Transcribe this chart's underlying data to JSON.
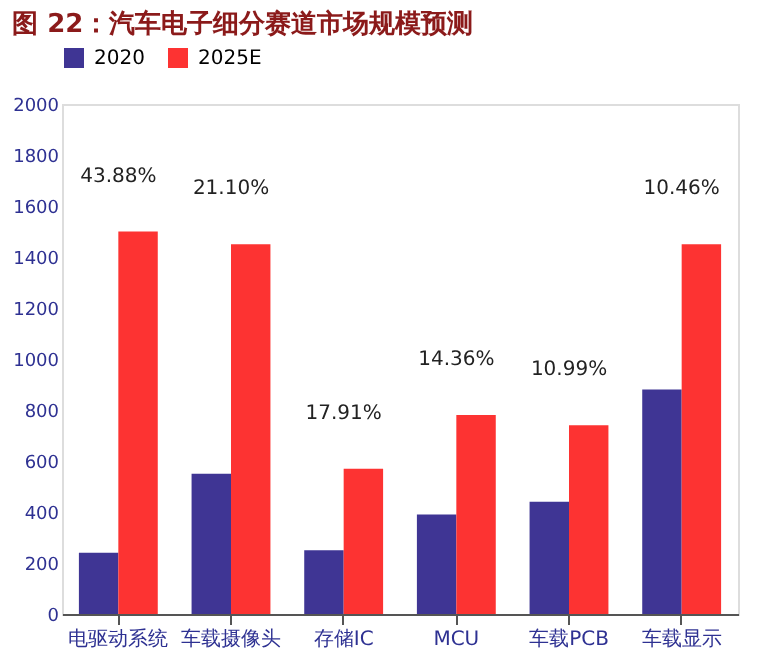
{
  "chart_data": {
    "type": "bar",
    "title": "图 22：汽车电子细分赛道市场规模预测",
    "categories": [
      "电驱动系统",
      "车载摄像头",
      "存储IC",
      "MCU",
      "车载PCB",
      "车载显示"
    ],
    "series": [
      {
        "name": "2020",
        "color": "#3f3594",
        "values": [
          240,
          550,
          250,
          390,
          440,
          880
        ]
      },
      {
        "name": "2025E",
        "color": "#fd3332",
        "values": [
          1500,
          1450,
          570,
          780,
          740,
          1450
        ]
      }
    ],
    "ylim": [
      0,
      2000
    ],
    "yticks": [
      0,
      200,
      400,
      600,
      800,
      1000,
      1200,
      1400,
      1600,
      1800,
      2000
    ],
    "grid": false,
    "legend": "top",
    "annotations": [
      "43.88%",
      "21.10%",
      "17.91%",
      "14.36%",
      "10.99%",
      "10.46%"
    ]
  }
}
